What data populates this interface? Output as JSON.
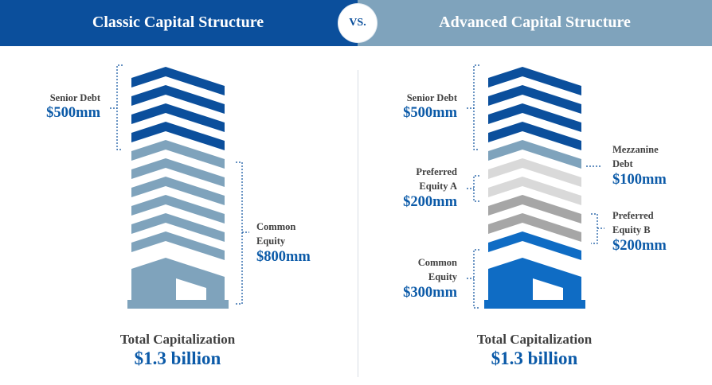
{
  "header": {
    "left_title": "Classic Capital Structure",
    "vs": "VS.",
    "right_title": "Advanced Capital Structure"
  },
  "classic": {
    "senior_debt": {
      "label": "Senior Debt",
      "value": "$500mm"
    },
    "common_equity": {
      "label_line1": "Common",
      "label_line2": "Equity",
      "value": "$800mm"
    },
    "total_label": "Total Capitalization",
    "total_value": "$1.3 billion"
  },
  "advanced": {
    "senior_debt": {
      "label": "Senior Debt",
      "value": "$500mm"
    },
    "mezzanine_debt": {
      "label_line1": "Mezzanine",
      "label_line2": "Debt",
      "value": "$100mm"
    },
    "preferred_equity_a": {
      "label_line1": "Preferred",
      "label_line2": "Equity A",
      "value": "$200mm"
    },
    "preferred_equity_b": {
      "label_line1": "Preferred",
      "label_line2": "Equity B",
      "value": "$200mm"
    },
    "common_equity": {
      "label_line1": "Common",
      "label_line2": "Equity",
      "value": "$300mm"
    },
    "total_label": "Total Capitalization",
    "total_value": "$1.3 billion"
  },
  "colors": {
    "senior_debt": "#0b4f9c",
    "classic_common_equity": "#7fa3bc",
    "mezzanine": "#7fa3bc",
    "preferred_a": "#d9d9d9",
    "preferred_b": "#a6a6a6",
    "advanced_common_equity": "#0f6cc4"
  }
}
